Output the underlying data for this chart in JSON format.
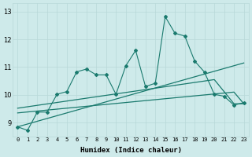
{
  "xlabel": "Humidex (Indice chaleur)",
  "xlim": [
    -0.5,
    23.5
  ],
  "ylim": [
    8.5,
    13.3
  ],
  "xticks": [
    0,
    1,
    2,
    3,
    4,
    5,
    6,
    7,
    8,
    9,
    10,
    11,
    12,
    13,
    14,
    15,
    16,
    17,
    18,
    19,
    20,
    21,
    22,
    23
  ],
  "yticks": [
    9,
    10,
    11,
    12,
    13
  ],
  "bg_color": "#ceeaea",
  "line_color": "#1a7a6e",
  "grid_color": "#b8d8d8",
  "series_jagged": {
    "x": [
      0,
      1,
      2,
      3,
      4,
      5,
      6,
      7,
      8,
      9,
      10,
      11,
      12,
      13,
      14,
      15,
      16,
      17,
      18,
      19,
      20,
      21,
      22,
      23
    ],
    "y": [
      8.85,
      8.72,
      9.38,
      9.38,
      10.02,
      10.12,
      10.83,
      10.93,
      10.72,
      10.72,
      10.02,
      11.05,
      11.6,
      10.3,
      10.42,
      12.82,
      12.22,
      12.12,
      11.22,
      10.82,
      10.02,
      9.95,
      9.63,
      9.72
    ]
  },
  "series_lin1": {
    "x": [
      0,
      23
    ],
    "y": [
      8.85,
      11.15
    ]
  },
  "series_lin2": {
    "x": [
      0,
      20,
      22,
      23
    ],
    "y": [
      9.52,
      10.55,
      9.68,
      9.68
    ]
  },
  "series_lin3": {
    "x": [
      0,
      22,
      23
    ],
    "y": [
      9.35,
      10.1,
      9.68
    ]
  }
}
